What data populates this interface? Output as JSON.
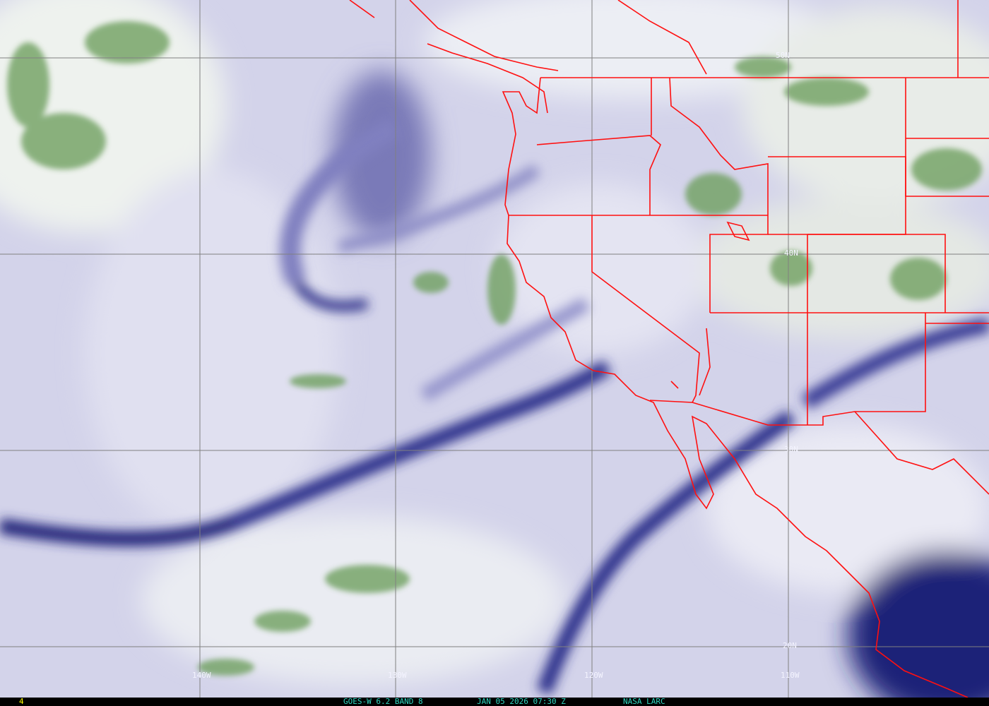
{
  "image": {
    "type": "satellite water vapor imagery",
    "palette": {
      "dry": "#2a2a86",
      "mid": "#a9a9d6",
      "moist": "#f2f4f6",
      "cold_cloud": "#5f9a50",
      "borders": "#ff1010",
      "grid": "#808080",
      "caption": "#2fd6c0",
      "frame_number": "#ffff00"
    }
  },
  "grid_labels": {
    "lat": [
      "50N",
      "40N",
      "30N",
      "20N"
    ],
    "lon": [
      "140W",
      "130W",
      "120W",
      "110W"
    ]
  },
  "caption": {
    "frame_number": "4",
    "satellite": "GOES-W 6.2 BAND 8",
    "datetime": "JAN 05 2026 07:30 Z",
    "source": "NASA LARC"
  }
}
